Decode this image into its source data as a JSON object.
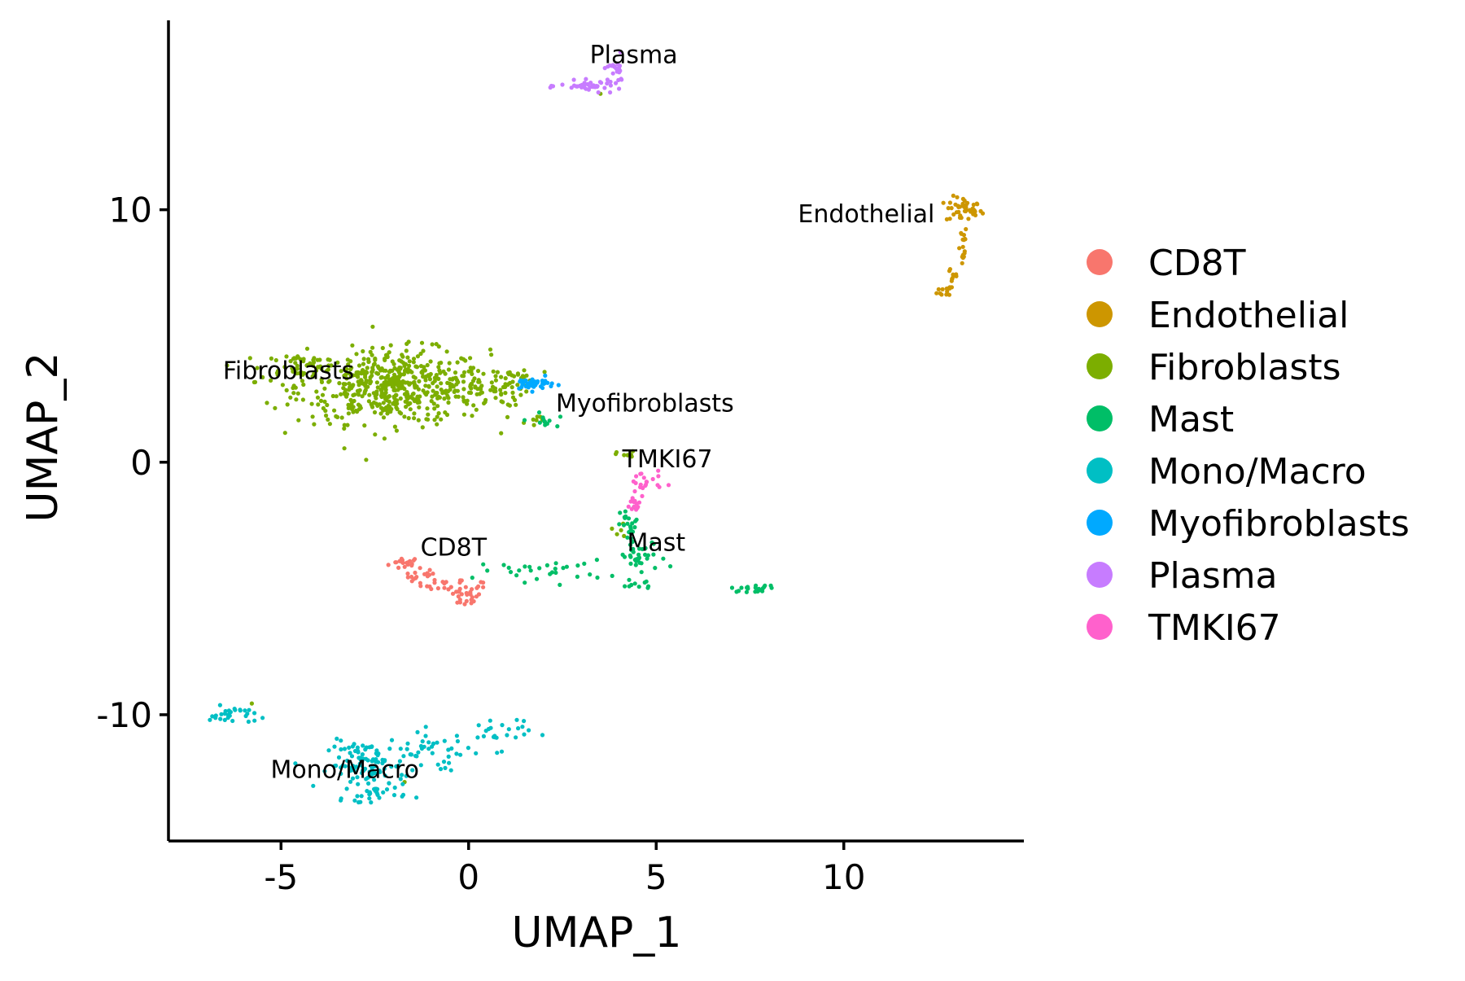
{
  "chart_data": {
    "type": "scatter",
    "xlabel": "UMAP_1",
    "ylabel": "UMAP_2",
    "xlim": [
      -8,
      14.8
    ],
    "ylim": [
      -15,
      17.5
    ],
    "xticks": [
      -5,
      0,
      5,
      10
    ],
    "yticks": [
      -10,
      0,
      10
    ],
    "grid": false,
    "legend_position": "right",
    "series": [
      {
        "name": "CD8T",
        "color": "#F8766D",
        "label": "CD8T",
        "label_at": [
          -0.4,
          -3.7
        ],
        "blobs": [
          {
            "cx": -1.7,
            "cy": -4.0,
            "sx": 0.25,
            "sy": 0.15,
            "n": 18
          },
          {
            "cx": -1.2,
            "cy": -4.5,
            "sx": 0.3,
            "sy": 0.18,
            "n": 18
          },
          {
            "cx": -0.6,
            "cy": -4.9,
            "sx": 0.3,
            "sy": 0.18,
            "n": 14
          },
          {
            "cx": -0.1,
            "cy": -5.3,
            "sx": 0.25,
            "sy": 0.25,
            "n": 25
          },
          {
            "cx": 0.4,
            "cy": -4.9,
            "sx": 0.15,
            "sy": 0.12,
            "n": 4
          }
        ]
      },
      {
        "name": "Endothelial",
        "color": "#CD9600",
        "label": "Endothelial",
        "label_at": [
          10.6,
          9.5
        ],
        "blobs": [
          {
            "cx": 13.2,
            "cy": 10.0,
            "sx": 0.28,
            "sy": 0.3,
            "n": 45
          },
          {
            "cx": 13.15,
            "cy": 8.6,
            "sx": 0.08,
            "sy": 0.5,
            "n": 18
          },
          {
            "cx": 12.9,
            "cy": 7.3,
            "sx": 0.1,
            "sy": 0.4,
            "n": 12
          },
          {
            "cx": 12.75,
            "cy": 6.8,
            "sx": 0.15,
            "sy": 0.15,
            "n": 10
          }
        ]
      },
      {
        "name": "Fibroblasts",
        "color": "#7CAE00",
        "label": "Fibroblasts",
        "label_at": [
          -4.8,
          3.3
        ],
        "blobs": [
          {
            "cx": -2.0,
            "cy": 3.0,
            "sx": 1.5,
            "sy": 0.85,
            "n": 550
          },
          {
            "cx": -4.6,
            "cy": 3.8,
            "sx": 0.55,
            "sy": 0.35,
            "n": 45
          },
          {
            "cx": 0.5,
            "cy": 2.9,
            "sx": 0.6,
            "sy": 0.4,
            "n": 60
          },
          {
            "cx": 1.3,
            "cy": 3.5,
            "sx": 0.15,
            "sy": 0.12,
            "n": 10
          },
          {
            "cx": 1.8,
            "cy": 1.7,
            "sx": 0.15,
            "sy": 0.12,
            "n": 6
          },
          {
            "cx": 4.2,
            "cy": 0.3,
            "sx": 0.15,
            "sy": 0.08,
            "n": 10
          },
          {
            "cx": 4.0,
            "cy": -2.7,
            "sx": 0.3,
            "sy": 0.3,
            "n": 5
          },
          {
            "cx": 3.5,
            "cy": 14.6,
            "sx": 0.05,
            "sy": 0.05,
            "n": 1
          },
          {
            "cx": -5.8,
            "cy": -9.6,
            "sx": 0.05,
            "sy": 0.05,
            "n": 1
          },
          {
            "cx": -1.7,
            "cy": -12.7,
            "sx": 0.05,
            "sy": 0.05,
            "n": 1
          }
        ]
      },
      {
        "name": "Mast",
        "color": "#00BE67",
        "label": "Mast",
        "label_at": [
          5.0,
          -3.5
        ],
        "blobs": [
          {
            "cx": 4.3,
            "cy": -2.5,
            "sx": 0.15,
            "sy": 0.4,
            "n": 20
          },
          {
            "cx": 4.6,
            "cy": -3.8,
            "sx": 0.4,
            "sy": 0.4,
            "n": 35
          },
          {
            "cx": 4.5,
            "cy": -4.8,
            "sx": 0.25,
            "sy": 0.15,
            "n": 10
          },
          {
            "cx": 2.0,
            "cy": -4.3,
            "sx": 1.0,
            "sy": 0.25,
            "n": 30
          },
          {
            "cx": 7.6,
            "cy": -5.0,
            "sx": 0.35,
            "sy": 0.08,
            "n": 22
          },
          {
            "cx": 2.0,
            "cy": 1.6,
            "sx": 0.2,
            "sy": 0.2,
            "n": 12
          }
        ]
      },
      {
        "name": "Mono/Macro",
        "color": "#00BFC4",
        "label": "Mono/Macro",
        "label_at": [
          -3.3,
          -12.5
        ],
        "blobs": [
          {
            "cx": -2.7,
            "cy": -12.0,
            "sx": 0.6,
            "sy": 0.55,
            "n": 100
          },
          {
            "cx": -2.5,
            "cy": -13.1,
            "sx": 0.5,
            "sy": 0.2,
            "n": 25
          },
          {
            "cx": -1.0,
            "cy": -11.5,
            "sx": 0.7,
            "sy": 0.5,
            "n": 45
          },
          {
            "cx": 0.8,
            "cy": -10.7,
            "sx": 0.5,
            "sy": 0.4,
            "n": 25
          },
          {
            "cx": -6.3,
            "cy": -10.0,
            "sx": 0.35,
            "sy": 0.2,
            "n": 30
          }
        ]
      },
      {
        "name": "Myofibroblasts",
        "color": "#00A9FF",
        "label": "Myofibroblasts",
        "label_at": [
          4.7,
          2.0
        ],
        "blobs": [
          {
            "cx": 1.7,
            "cy": 3.1,
            "sx": 0.35,
            "sy": 0.15,
            "n": 40
          }
        ]
      },
      {
        "name": "Plasma",
        "color": "#C77CFF",
        "label": "Plasma",
        "label_at": [
          4.4,
          15.8
        ],
        "blobs": [
          {
            "cx": 3.3,
            "cy": 14.9,
            "sx": 0.5,
            "sy": 0.12,
            "n": 40
          },
          {
            "cx": 3.9,
            "cy": 15.5,
            "sx": 0.2,
            "sy": 0.3,
            "n": 20
          }
        ]
      },
      {
        "name": "TMKI67",
        "color": "#FF61CC",
        "label": "TMKI67",
        "label_at": [
          5.3,
          -0.2
        ],
        "blobs": [
          {
            "cx": 4.7,
            "cy": -0.8,
            "sx": 0.25,
            "sy": 0.3,
            "n": 20
          },
          {
            "cx": 4.4,
            "cy": -1.7,
            "sx": 0.12,
            "sy": 0.25,
            "n": 15
          }
        ]
      }
    ]
  }
}
